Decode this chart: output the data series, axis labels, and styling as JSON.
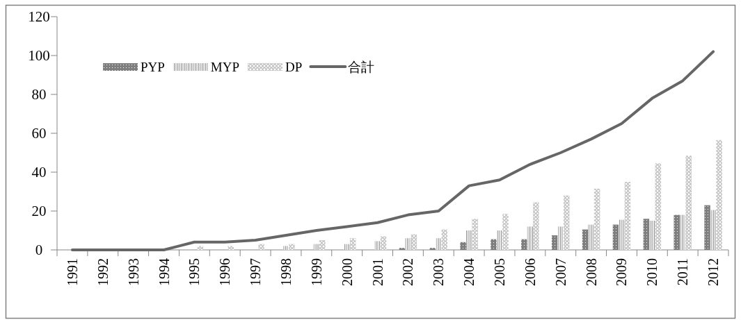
{
  "chart_data": {
    "type": "bar",
    "categories": [
      "1991",
      "1992",
      "1993",
      "1994",
      "1995",
      "1996",
      "1997",
      "1998",
      "1999",
      "2000",
      "2001",
      "2002",
      "2003",
      "2004",
      "2005",
      "2006",
      "2007",
      "2008",
      "2009",
      "2010",
      "2011",
      "2012"
    ],
    "series": [
      {
        "name": "PYP",
        "color": "#7f7f7f",
        "values": [
          0,
          0,
          0,
          0,
          0,
          0,
          0,
          0,
          0,
          0,
          0,
          1,
          1,
          4,
          5.5,
          5.5,
          7.5,
          10.5,
          13,
          16,
          18,
          23
        ]
      },
      {
        "name": "MYP",
        "color": "#8c8c8c",
        "values": [
          0,
          0,
          0,
          0,
          0,
          0,
          0,
          2,
          3,
          3,
          4.5,
          6,
          6,
          10,
          10,
          12,
          12,
          13,
          15.5,
          15,
          18,
          20.5
        ]
      },
      {
        "name": "DP",
        "color": "#9a9a9a",
        "values": [
          0,
          0,
          0,
          0,
          2,
          2,
          3,
          3,
          5,
          6,
          7,
          8,
          10.5,
          16,
          18.5,
          24.5,
          28,
          31.5,
          35,
          44.5,
          48.5,
          56.5
        ]
      },
      {
        "name": "合計",
        "type": "line",
        "color": "#666666",
        "values": [
          0,
          0,
          0,
          0,
          4,
          4,
          5,
          7.5,
          10,
          12,
          14,
          18,
          20,
          33,
          36,
          44,
          50,
          57,
          65,
          78,
          87,
          102
        ]
      }
    ],
    "ylim": [
      0,
      120
    ],
    "yticks": [
      0,
      20,
      40,
      60,
      80,
      100,
      120
    ],
    "grid": false,
    "legend": "top left"
  }
}
